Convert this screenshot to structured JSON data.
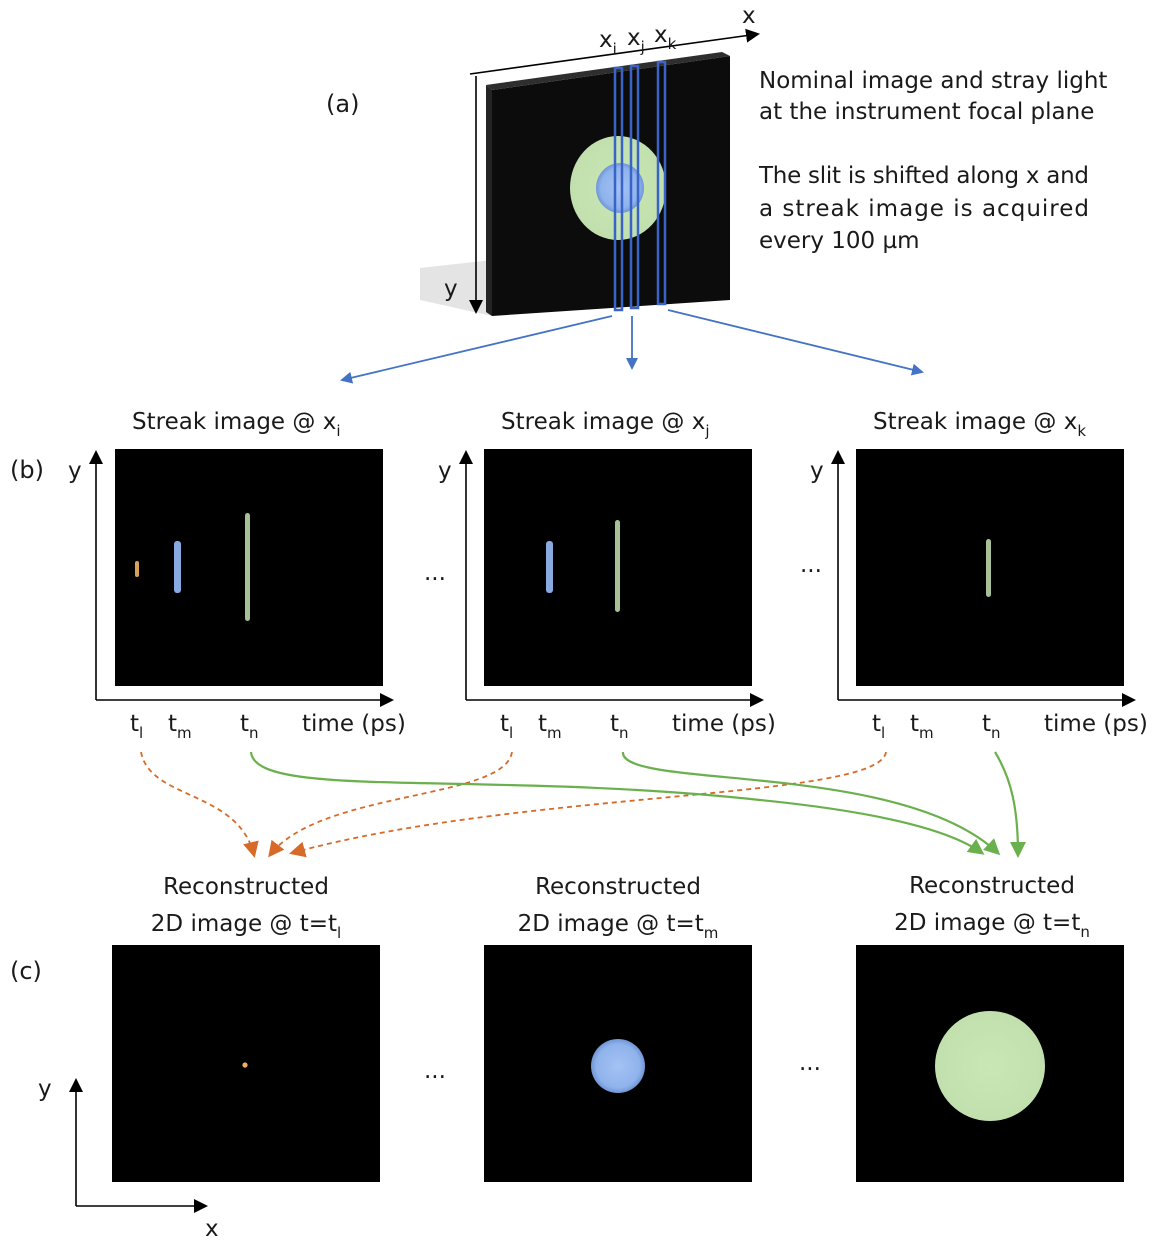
{
  "panel_a": {
    "label": "(a)",
    "axis_x": "x",
    "axis_y": "y",
    "slit_labels": {
      "i": {
        "base": "x",
        "sub": "i"
      },
      "j": {
        "base": "x",
        "sub": "j"
      },
      "k": {
        "base": "x",
        "sub": "k"
      }
    },
    "description_line1": "Nominal image and stray light",
    "description_line2": "at the instrument focal plane",
    "description_line3": "The slit is shifted along x and",
    "description_line4": "a streak image is acquired",
    "description_line5": "every 100 µm"
  },
  "panel_b": {
    "label": "(b)",
    "title_prefix": "Streak image @ x",
    "titles_sub": [
      "i",
      "j",
      "k"
    ],
    "axis_y": "y",
    "tick_base": "t",
    "tick_subs": [
      "l",
      "m",
      "n"
    ],
    "time_label": "time (ps)",
    "ellipsis": "..."
  },
  "panel_c": {
    "label": "(c)",
    "title_line1": "Reconstructed",
    "title_line2_prefix": "2D image @ t=t",
    "titles_sub": [
      "l",
      "m",
      "n"
    ],
    "axis_x": "x",
    "axis_y": "y",
    "ellipsis": "..."
  },
  "colors": {
    "stray_light_green": "#c4e2b0",
    "nominal_blue": "#8fb3ec",
    "point_orange": "#f0b060",
    "slit_outline": "#3a63c8",
    "arrow_blue": "#4472c4",
    "arrow_orange": "#d86a28",
    "arrow_green": "#6ab04c"
  }
}
